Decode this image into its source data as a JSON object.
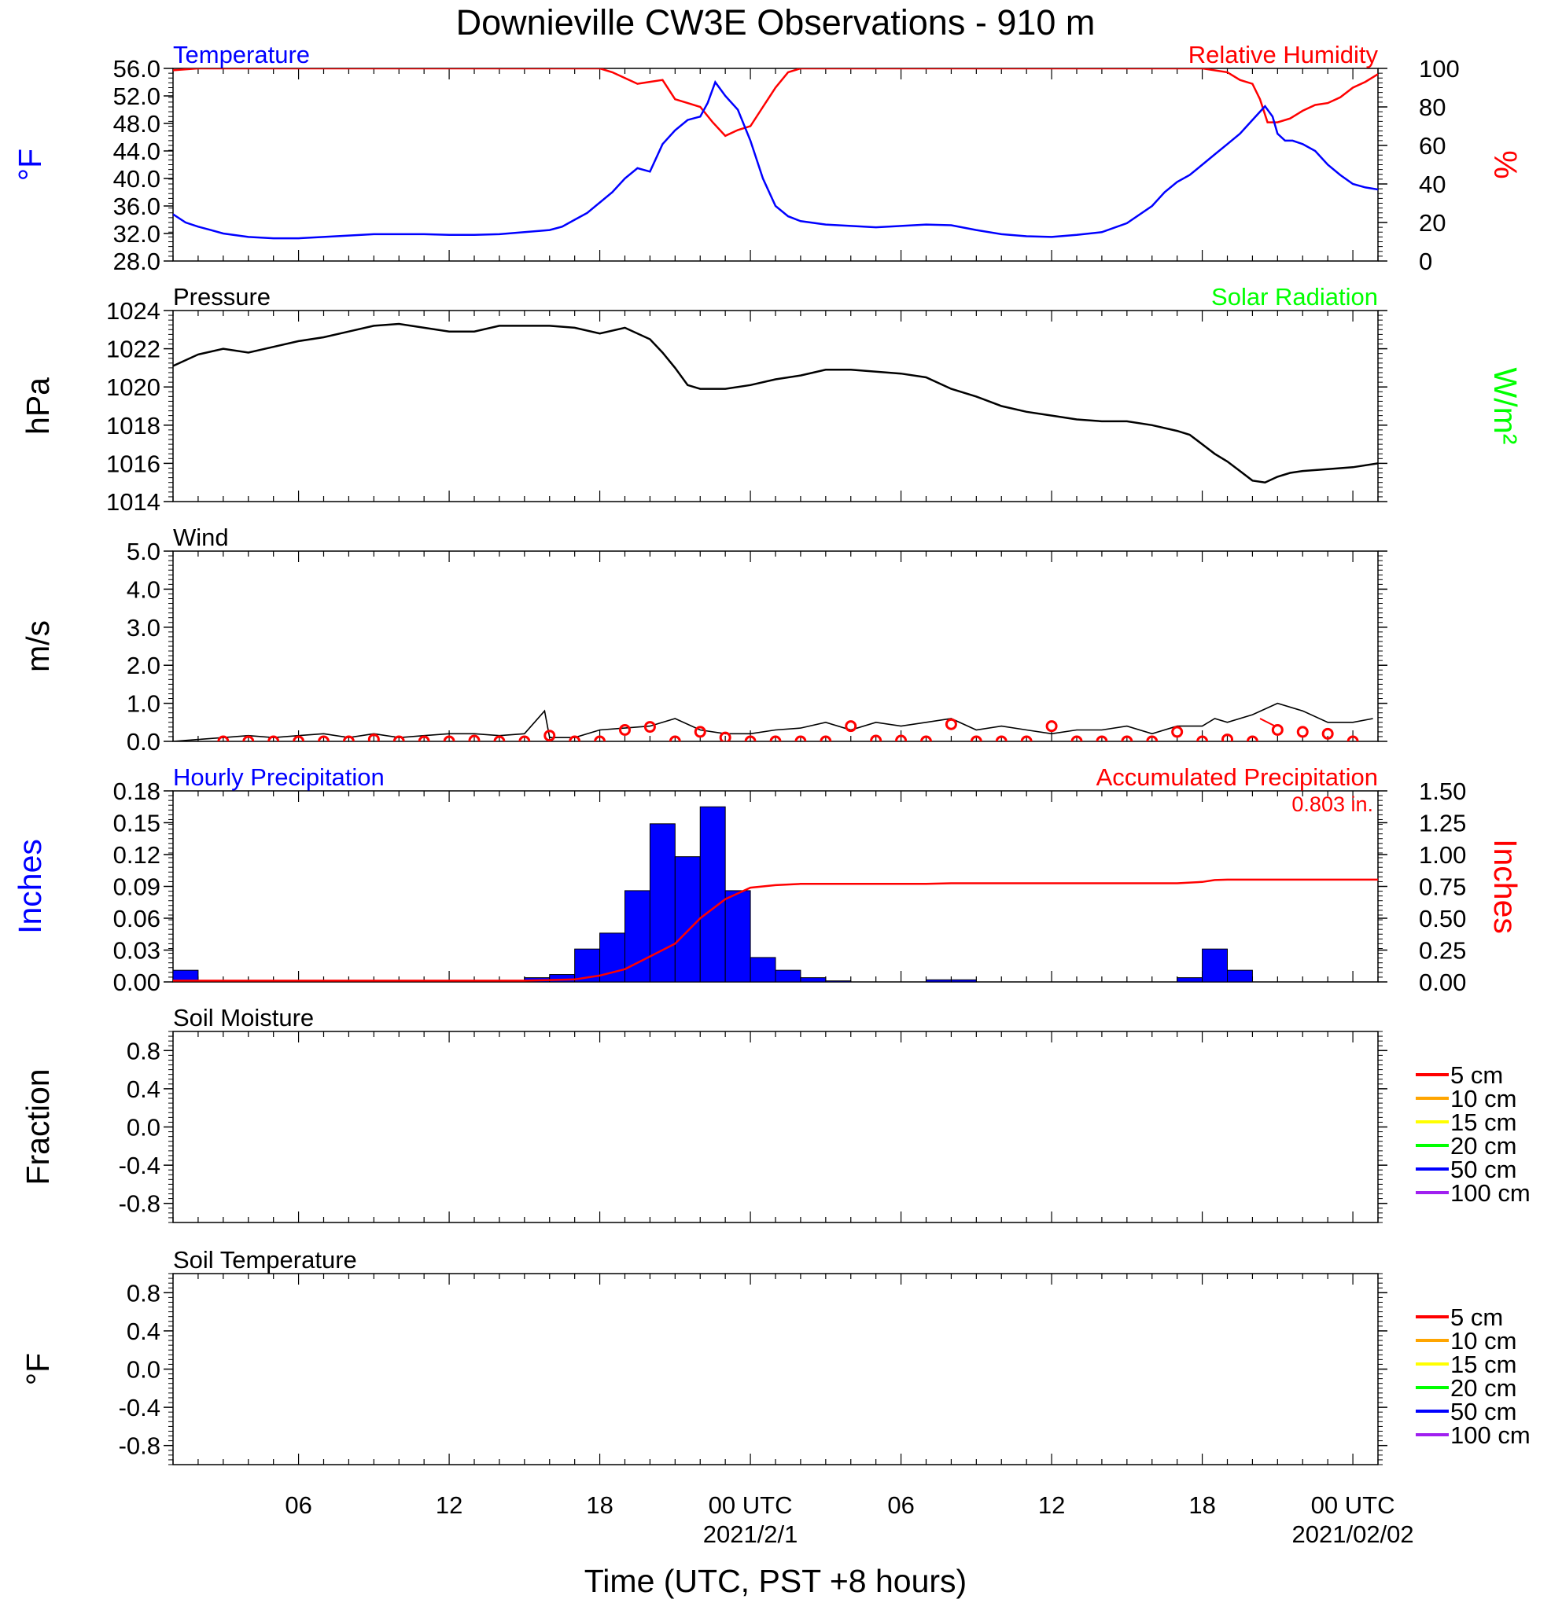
{
  "title": "Downieville CW3E Observations - 910 m",
  "xaxis": {
    "title": "Time (UTC, PST +8 hours)",
    "range_hours": [
      0,
      48
    ],
    "tick_labels": [
      {
        "h": 5,
        "label": "06"
      },
      {
        "h": 11,
        "label": "12"
      },
      {
        "h": 17,
        "label": "18"
      },
      {
        "h": 23,
        "label": "00 UTC",
        "date": "2021/2/1"
      },
      {
        "h": 29,
        "label": "06"
      },
      {
        "h": 35,
        "label": "12"
      },
      {
        "h": 41,
        "label": "18"
      },
      {
        "h": 47,
        "label": "00 UTC",
        "date": "2021/02/02"
      }
    ]
  },
  "colors": {
    "temperature": "#0000ff",
    "humidity": "#ff0000",
    "pressure": "#000000",
    "solar": "#00ff00",
    "precip_bar": "#0000ff",
    "accum": "#ff0000"
  },
  "chart_data": [
    {
      "panel": "temperature_humidity",
      "type": "line",
      "title_left": "Temperature",
      "title_right": "Relative Humidity",
      "ylabel_left": "°F",
      "ylabel_right": "%",
      "ylim_left": [
        28,
        56
      ],
      "yticks_left": [
        "56.0",
        "52.0",
        "48.0",
        "44.0",
        "40.0",
        "36.0",
        "32.0",
        "28.0"
      ],
      "ylim_right": [
        0,
        100
      ],
      "yticks_right": [
        "100",
        "80",
        "60",
        "40",
        "20",
        "0"
      ],
      "series": [
        {
          "name": "Temperature",
          "axis": "left",
          "x": [
            0,
            0.5,
            1,
            1.5,
            2,
            3,
            4,
            5,
            6,
            7,
            8,
            9,
            10,
            11,
            12,
            13,
            14,
            15,
            15.5,
            16,
            16.5,
            17,
            17.5,
            18,
            18.5,
            19,
            19.5,
            20,
            20.5,
            21,
            21.3,
            21.6,
            22,
            22.5,
            23,
            23.5,
            24,
            24.5,
            25,
            26,
            27,
            28,
            29,
            30,
            31,
            32,
            33,
            34,
            35,
            36,
            37,
            38,
            39,
            39.5,
            40,
            40.5,
            41,
            41.5,
            42,
            42.5,
            43,
            43.5,
            43.8,
            44,
            44.3,
            44.6,
            45,
            45.5,
            46,
            46.5,
            47,
            47.5,
            48
          ],
          "values": [
            34.8,
            33.6,
            33.0,
            32.5,
            32.0,
            31.5,
            31.3,
            31.3,
            31.5,
            31.7,
            31.9,
            31.9,
            31.9,
            31.8,
            31.8,
            31.9,
            32.2,
            32.5,
            33.0,
            34.0,
            35.0,
            36.5,
            38.0,
            40.0,
            41.5,
            41.0,
            45.0,
            47.0,
            48.5,
            49.0,
            51.0,
            54.0,
            52.0,
            50.0,
            45.5,
            40.0,
            36.0,
            34.5,
            33.8,
            33.3,
            33.1,
            32.9,
            33.1,
            33.3,
            33.2,
            32.5,
            31.9,
            31.6,
            31.5,
            31.8,
            32.2,
            33.5,
            36.0,
            38.0,
            39.5,
            40.5,
            42.0,
            43.5,
            45.0,
            46.5,
            48.5,
            50.5,
            49.0,
            46.5,
            45.5,
            45.5,
            45.0,
            44.0,
            42.0,
            40.5,
            39.2,
            38.7,
            38.4
          ]
        },
        {
          "name": "Relative Humidity",
          "axis": "right",
          "x": [
            0,
            1,
            5,
            10,
            15,
            16,
            17,
            17.5,
            18,
            18.5,
            19,
            19.5,
            20,
            20.5,
            21,
            21.5,
            22,
            22.5,
            23,
            23.5,
            24,
            24.5,
            25,
            30,
            35,
            40,
            41,
            42,
            42.5,
            43,
            43.3,
            43.6,
            44,
            44.5,
            45,
            45.5,
            46,
            46.5,
            47,
            47.5,
            48
          ],
          "values": [
            99,
            100,
            100,
            100,
            100,
            100,
            100,
            98,
            95,
            92,
            93,
            94,
            84,
            82,
            80,
            72,
            65,
            68,
            70,
            80,
            90,
            98,
            100,
            100,
            100,
            100,
            100,
            98,
            94,
            92,
            84,
            72,
            72,
            74,
            78,
            81,
            82,
            85,
            90,
            93,
            97
          ]
        }
      ]
    },
    {
      "panel": "pressure_solar",
      "type": "line",
      "title_left": "Pressure",
      "title_right": "Solar Radiation",
      "ylabel_left": "hPa",
      "ylabel_right": "W/m²",
      "ylim": [
        1014,
        1024
      ],
      "yticks": [
        "1024",
        "1022",
        "1020",
        "1018",
        "1016",
        "1014"
      ],
      "series": [
        {
          "name": "Pressure",
          "x": [
            0,
            1,
            2,
            3,
            4,
            5,
            6,
            7,
            8,
            9,
            10,
            11,
            12,
            13,
            14,
            15,
            16,
            17,
            18,
            19,
            19.5,
            20,
            20.5,
            21,
            22,
            23,
            24,
            25,
            26,
            27,
            28,
            29,
            30,
            31,
            32,
            33,
            34,
            35,
            36,
            37,
            38,
            39,
            40,
            40.5,
            41,
            41.5,
            42,
            42.5,
            43,
            43.5,
            44,
            44.5,
            45,
            46,
            47,
            48
          ],
          "values": [
            1021.1,
            1021.7,
            1022.0,
            1021.8,
            1022.1,
            1022.4,
            1022.6,
            1022.9,
            1023.2,
            1023.3,
            1023.1,
            1022.9,
            1022.9,
            1023.2,
            1023.2,
            1023.2,
            1023.1,
            1022.8,
            1023.1,
            1022.5,
            1021.8,
            1021.0,
            1020.1,
            1019.9,
            1019.9,
            1020.1,
            1020.4,
            1020.6,
            1020.9,
            1020.9,
            1020.8,
            1020.7,
            1020.5,
            1019.9,
            1019.5,
            1019.0,
            1018.7,
            1018.5,
            1018.3,
            1018.2,
            1018.2,
            1018.0,
            1017.7,
            1017.5,
            1017.0,
            1016.5,
            1016.1,
            1015.6,
            1015.1,
            1015.0,
            1015.3,
            1015.5,
            1015.6,
            1015.7,
            1015.8,
            1016.0
          ]
        }
      ]
    },
    {
      "panel": "wind",
      "type": "line",
      "title_left": "Wind",
      "ylabel_left": "m/s",
      "ylim": [
        0,
        5
      ],
      "yticks": [
        "5.0",
        "4.0",
        "3.0",
        "2.0",
        "1.0",
        "0.0"
      ],
      "series": [
        {
          "name": "Wind speed",
          "x": [
            0,
            1,
            2,
            3,
            4,
            5,
            6,
            7,
            8,
            9,
            10,
            11,
            12,
            13,
            14,
            14.8,
            15,
            16,
            17,
            18,
            19,
            20,
            21,
            22,
            23,
            24,
            25,
            26,
            27,
            28,
            29,
            30,
            31,
            32,
            33,
            34,
            35,
            36,
            37,
            38,
            39,
            40,
            41,
            41.5,
            42,
            43,
            44,
            45,
            46,
            47,
            47.8
          ],
          "values": [
            0,
            0.05,
            0.1,
            0.15,
            0.1,
            0.15,
            0.2,
            0.1,
            0.2,
            0.1,
            0.15,
            0.2,
            0.2,
            0.15,
            0.2,
            0.8,
            0.1,
            0.1,
            0.3,
            0.35,
            0.4,
            0.6,
            0.3,
            0.2,
            0.2,
            0.3,
            0.35,
            0.5,
            0.3,
            0.5,
            0.4,
            0.5,
            0.6,
            0.3,
            0.4,
            0.3,
            0.2,
            0.3,
            0.3,
            0.4,
            0.2,
            0.4,
            0.4,
            0.6,
            0.5,
            0.7,
            1.0,
            0.8,
            0.5,
            0.5,
            0.6
          ]
        }
      ],
      "direction_marker_hours": [
        2,
        3,
        4,
        5,
        6,
        7,
        8,
        9,
        10,
        11,
        12,
        13,
        14,
        15,
        16,
        17,
        18,
        19,
        20,
        21,
        22,
        23,
        24,
        25,
        26,
        27,
        28,
        29,
        30,
        31,
        32,
        33,
        34,
        35,
        36,
        37,
        38,
        39,
        40,
        41,
        42,
        43,
        44,
        45,
        46,
        47
      ],
      "direction_marker_values": [
        0,
        0,
        0,
        0,
        0,
        0,
        0.05,
        0,
        0,
        0,
        0.02,
        0,
        0,
        0.15,
        0,
        0,
        0.3,
        0.38,
        0,
        0.25,
        0.1,
        0,
        0,
        0,
        0,
        0.4,
        0.02,
        0.02,
        0,
        0.45,
        0,
        0,
        0,
        0.4,
        0,
        0,
        0,
        0,
        0.25,
        0,
        0.05,
        0,
        0.3,
        0.25,
        0.2,
        0
      ]
    },
    {
      "panel": "precipitation",
      "type": "bar",
      "title_left": "Hourly Precipitation",
      "title_right": "Accumulated Precipitation",
      "total_label": "0.803 in.",
      "ylabel_left": "Inches",
      "ylabel_right": "Inches",
      "ylim_left": [
        0,
        0.18
      ],
      "yticks_left": [
        "0.18",
        "0.15",
        "0.12",
        "0.09",
        "0.06",
        "0.03",
        "0.00"
      ],
      "ylim_right": [
        0,
        1.5
      ],
      "yticks_right": [
        "1.50",
        "1.25",
        "1.00",
        "0.75",
        "0.50",
        "0.25",
        "0.00"
      ],
      "hourly": {
        "hours": [
          0,
          14,
          15,
          16,
          17,
          18,
          19,
          20,
          21,
          22,
          23,
          24,
          25,
          26,
          30,
          31,
          40,
          41,
          42
        ],
        "values": [
          0.011,
          0.004,
          0.007,
          0.031,
          0.046,
          0.086,
          0.149,
          0.118,
          0.165,
          0.086,
          0.023,
          0.011,
          0.004,
          0.001,
          0.002,
          0.002,
          0.004,
          0.031,
          0.011
        ]
      },
      "accumulated": {
        "x": [
          0,
          14,
          15,
          16,
          17,
          18,
          19,
          20,
          21,
          22,
          23,
          24,
          25,
          26,
          30,
          31,
          32,
          40,
          41,
          41.5,
          42,
          48
        ],
        "values": [
          0.01,
          0.01,
          0.015,
          0.02,
          0.05,
          0.1,
          0.2,
          0.3,
          0.5,
          0.65,
          0.74,
          0.76,
          0.77,
          0.77,
          0.77,
          0.775,
          0.775,
          0.775,
          0.785,
          0.8,
          0.803,
          0.803
        ]
      }
    },
    {
      "panel": "soil_moisture",
      "type": "line",
      "title_left": "Soil Moisture",
      "ylabel_left": "Fraction",
      "ylim": [
        -1,
        1
      ],
      "yticks": [
        "0.8",
        "0.4",
        "0.0",
        "-0.4",
        "-0.8"
      ],
      "legend": [
        {
          "label": "5 cm",
          "color": "#ff0000"
        },
        {
          "label": "10 cm",
          "color": "#ffa500"
        },
        {
          "label": "15 cm",
          "color": "#ffff00"
        },
        {
          "label": "20 cm",
          "color": "#00ff00"
        },
        {
          "label": "50 cm",
          "color": "#0000ff"
        },
        {
          "label": "100 cm",
          "color": "#a020f0"
        }
      ],
      "series": []
    },
    {
      "panel": "soil_temperature",
      "type": "line",
      "title_left": "Soil Temperature",
      "ylabel_left": "°F",
      "ylim": [
        -1,
        1
      ],
      "yticks": [
        "0.8",
        "0.4",
        "0.0",
        "-0.4",
        "-0.8"
      ],
      "legend": [
        {
          "label": "5 cm",
          "color": "#ff0000"
        },
        {
          "label": "10 cm",
          "color": "#ffa500"
        },
        {
          "label": "15 cm",
          "color": "#ffff00"
        },
        {
          "label": "20 cm",
          "color": "#00ff00"
        },
        {
          "label": "50 cm",
          "color": "#0000ff"
        },
        {
          "label": "100 cm",
          "color": "#a020f0"
        }
      ],
      "series": []
    }
  ]
}
